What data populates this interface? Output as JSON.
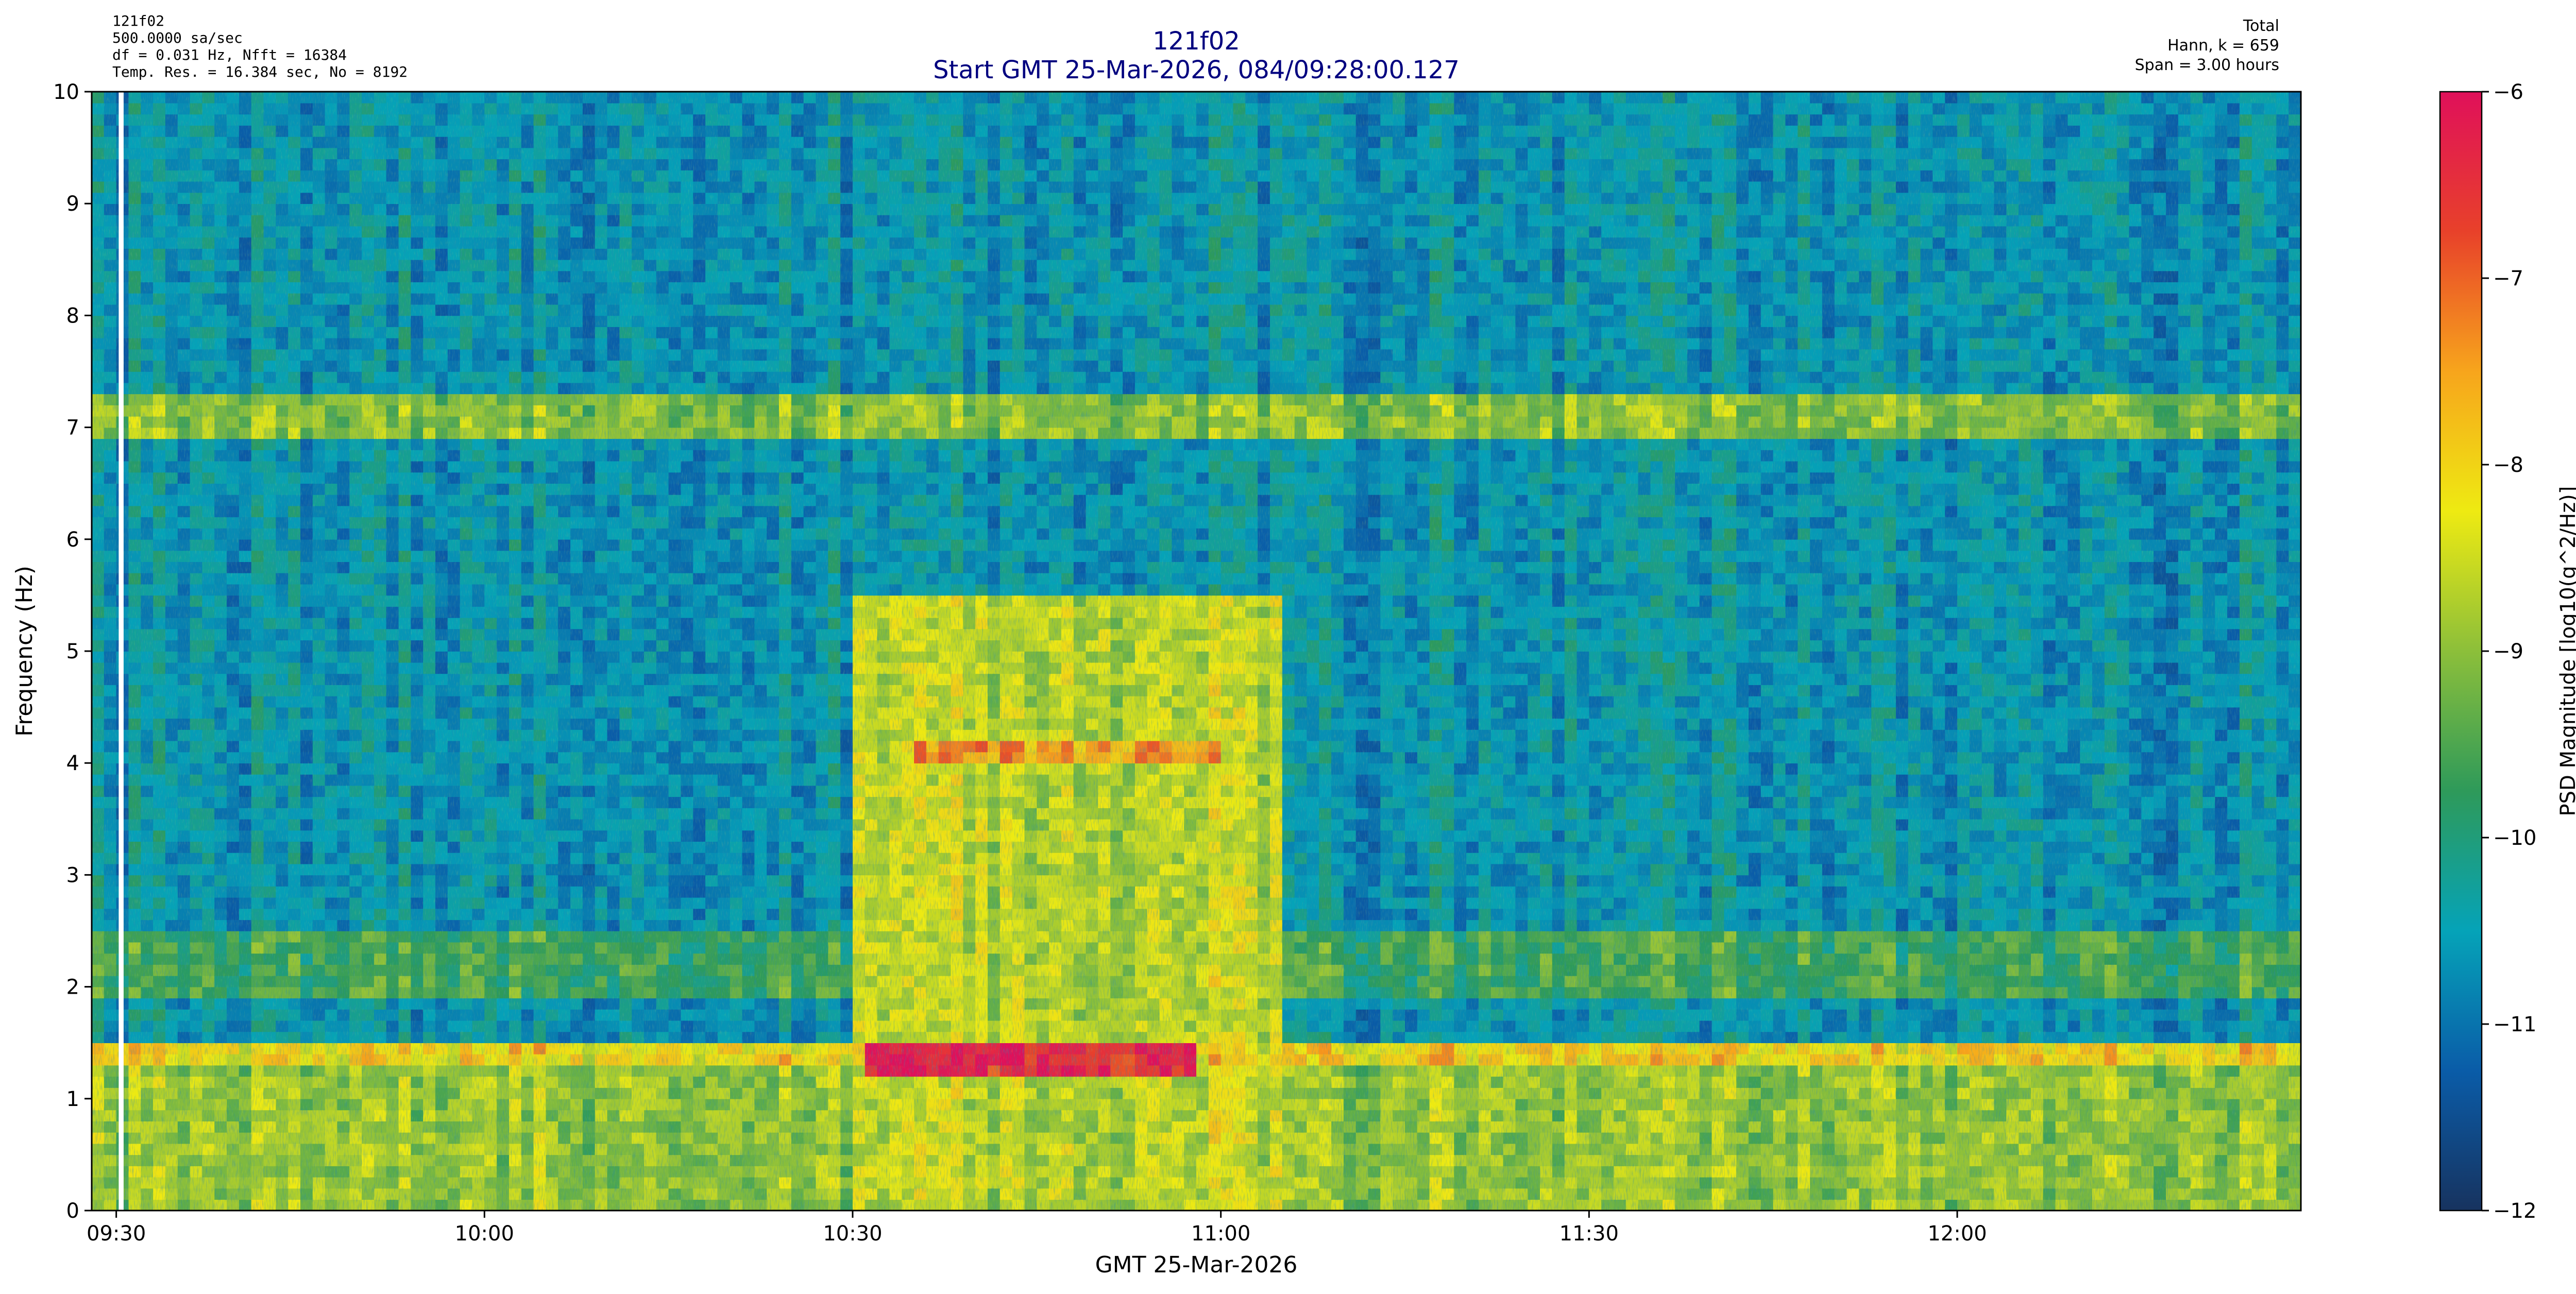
{
  "header": {
    "left_lines": [
      "121f02",
      "500.0000 sa/sec",
      "df = 0.031 Hz,  Nfft = 16384",
      "Temp. Res. = 16.384 sec, No = 8192"
    ],
    "title": "121f02",
    "subtitle": "Start GMT 25-Mar-2026, 084/09:28:00.127",
    "right_lines": [
      "Total",
      "Hann, k = 659",
      "Span = 3.00 hours"
    ]
  },
  "colors": {
    "title": "#00007f",
    "colormap": [
      "#17335f",
      "#0a5ca8",
      "#05a3b8",
      "#2e9a5a",
      "#8cbf3a",
      "#eeea12",
      "#f7a51c",
      "#e8412a",
      "#e0105a"
    ]
  },
  "chart_data": {
    "type": "heatmap",
    "xlabel": "GMT 25-Mar-2026",
    "ylabel": "Frequency (Hz)",
    "colorbar_label": "PSD Magnitude [log10(g^2/Hz)]",
    "x_range_minutes_after_0930": [
      -2,
      178
    ],
    "x_ticks": [
      {
        "label": "09:30",
        "value": 0
      },
      {
        "label": "10:00",
        "value": 30
      },
      {
        "label": "10:30",
        "value": 60
      },
      {
        "label": "11:00",
        "value": 90
      },
      {
        "label": "11:30",
        "value": 120
      },
      {
        "label": "12:00",
        "value": 150
      }
    ],
    "ylim": [
      0,
      10
    ],
    "y_ticks": [
      "0",
      "1",
      "2",
      "3",
      "4",
      "5",
      "6",
      "7",
      "8",
      "9",
      "10"
    ],
    "clim": [
      -12,
      -6
    ],
    "colorbar_ticks": [
      "−12",
      "−11",
      "−10",
      "−9",
      "−8",
      "−7",
      "−6"
    ],
    "background_level": -10.6,
    "features": [
      {
        "name": "band 1.4 Hz",
        "f": [
          1.3,
          1.5
        ],
        "t": [
          -2,
          178
        ],
        "level": -8.0
      },
      {
        "name": "low band",
        "f": [
          0,
          1.3
        ],
        "t": [
          -2,
          178
        ],
        "level": -8.9
      },
      {
        "name": "band 2.3 Hz",
        "f": [
          1.9,
          2.5
        ],
        "t": [
          -2,
          178
        ],
        "level": -9.6
      },
      {
        "name": "band 7.1 Hz",
        "f": [
          6.95,
          7.25
        ],
        "t": [
          -2,
          178
        ],
        "level": -9.0
      },
      {
        "name": "activity 10:30-11:05",
        "f": [
          0,
          5.5
        ],
        "t": [
          60,
          95
        ],
        "level": -8.6
      },
      {
        "name": "peak 1.35 Hz",
        "f": [
          1.25,
          1.5
        ],
        "t": [
          61,
          88
        ],
        "level": -6.3
      },
      {
        "name": "peak 4.1 Hz",
        "f": [
          4.0,
          4.2
        ],
        "t": [
          65,
          90
        ],
        "level": -7.4
      },
      {
        "name": "gap",
        "f": [
          0,
          10
        ],
        "t": [
          0.2,
          0.6
        ],
        "level": null
      }
    ]
  }
}
